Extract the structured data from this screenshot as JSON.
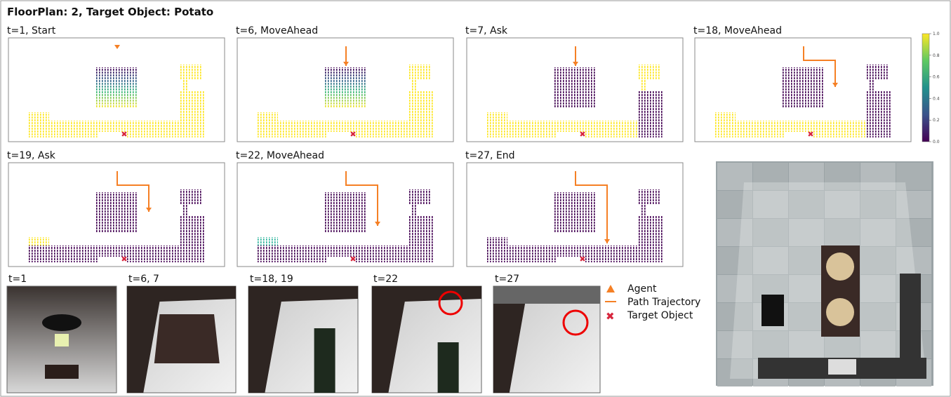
{
  "header": {
    "title": "FloorPlan: 2, Target Object: Potato"
  },
  "map_panels": [
    {
      "label": "t=1, Start"
    },
    {
      "label": "t=6, MoveAhead"
    },
    {
      "label": "t=7, Ask"
    },
    {
      "label": "t=18, MoveAhead"
    },
    {
      "label": "t=19, Ask"
    },
    {
      "label": "t=22, MoveAhead"
    },
    {
      "label": "t=27, End"
    }
  ],
  "colorbar": {
    "ticks": [
      "0.0",
      "0.2",
      "0.4",
      "0.6",
      "0.8",
      "1.0"
    ]
  },
  "photo_panels": [
    {
      "label": "t=1"
    },
    {
      "label": "t=6, 7"
    },
    {
      "label": "t=18, 19"
    },
    {
      "label": "t=22"
    },
    {
      "label": "t=27"
    }
  ],
  "legend": [
    {
      "label": "Agent"
    },
    {
      "label": "Path Trajectory"
    },
    {
      "label": "Target Object"
    }
  ]
}
